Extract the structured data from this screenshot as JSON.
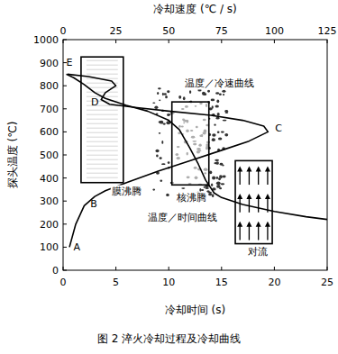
{
  "chart_data": {
    "type": "line",
    "title": "图 2 淬火冷却过程及冷却曲线",
    "x_label": "冷却时间 (s)",
    "x2_label": "冷却速度 (℃ / s)",
    "y_label": "探头温度 (℃)",
    "xlim": [
      0,
      25
    ],
    "xticks": [
      0,
      5,
      10,
      15,
      20,
      25
    ],
    "x2lim": [
      0,
      125
    ],
    "x2ticks": [
      0,
      25,
      50,
      75,
      100,
      125
    ],
    "ylim": [
      0,
      1000
    ],
    "yticks": [
      0,
      100,
      200,
      300,
      400,
      500,
      600,
      700,
      800,
      900,
      1000
    ],
    "grid": false,
    "series": [
      {
        "axis": "x",
        "color": "#000000",
        "x": [
          0.3,
          1,
          2,
          3,
          4,
          6,
          8,
          10,
          11,
          12,
          12.8,
          13.5,
          14.3,
          15,
          17,
          20,
          23,
          25
        ],
        "values": [
          850,
          835,
          805,
          770,
          745,
          715,
          690,
          650,
          610,
          530,
          460,
          390,
          335,
          315,
          285,
          255,
          232,
          220
        ]
      },
      {
        "axis": "x2",
        "color": "#000000",
        "x": [
          3,
          6,
          10,
          15,
          20,
          30,
          45,
          60,
          75,
          88,
          97,
          95,
          85,
          70,
          50,
          35,
          22,
          18,
          20,
          25,
          23,
          12,
          2
        ],
        "values": [
          100,
          200,
          280,
          320,
          345,
          380,
          430,
          475,
          520,
          560,
          600,
          625,
          650,
          672,
          690,
          705,
          720,
          740,
          770,
          800,
          820,
          840,
          850
        ]
      }
    ],
    "regions": [
      {
        "x": [
          1.7,
          5.7
        ],
        "y": [
          380,
          925
        ]
      },
      {
        "x": [
          10.3,
          13.8
        ],
        "y": [
          370,
          730
        ]
      },
      {
        "x": [
          16.3,
          19.8
        ],
        "y": [
          115,
          475
        ]
      }
    ],
    "annotations": [
      {
        "text": "A",
        "x": 1.3,
        "y": 85
      },
      {
        "text": "B",
        "x": 2.9,
        "y": 275
      },
      {
        "text": "C",
        "x": 20.4,
        "y": 600
      },
      {
        "text": "D",
        "x": 3.0,
        "y": 715
      },
      {
        "text": "E",
        "x": 0.6,
        "y": 885
      },
      {
        "text": "膜沸腾",
        "x": 6.0,
        "y": 330
      },
      {
        "text": "核沸腾",
        "x": 12.2,
        "y": 300
      },
      {
        "text": "对流",
        "x": 18.4,
        "y": 65
      },
      {
        "text": "温度／冷速曲线",
        "x": 14.8,
        "y": 795
      },
      {
        "text": "温度／时间曲线",
        "x": 11.3,
        "y": 215
      }
    ]
  }
}
